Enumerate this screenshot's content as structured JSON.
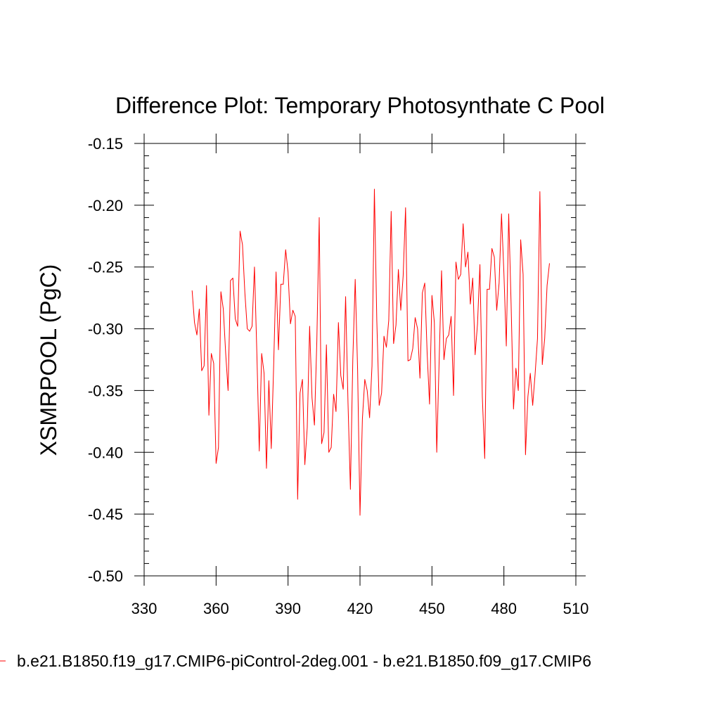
{
  "chart_data": {
    "type": "line",
    "title": "Difference Plot: Temporary Photosynthate C Pool",
    "xlabel": "",
    "ylabel": "XSMRPOOL  (PgC)",
    "xlim": [
      330,
      510
    ],
    "ylim": [
      -0.5,
      -0.15
    ],
    "xticks": [
      330,
      360,
      390,
      420,
      450,
      480,
      510
    ],
    "xtick_labels": [
      "330",
      "360",
      "390",
      "420",
      "450",
      "480",
      "510"
    ],
    "yticks": [
      -0.5,
      -0.45,
      -0.4,
      -0.35,
      -0.3,
      -0.25,
      -0.2,
      -0.15
    ],
    "ytick_labels": [
      "-0.50",
      "-0.45",
      "-0.40",
      "-0.35",
      "-0.30",
      "-0.25",
      "-0.20",
      "-0.15"
    ],
    "grid": false,
    "legend_position": "bottom-left",
    "series": [
      {
        "name": "b.e21.B1850.f19_g17.CMIP6-piControl-2deg.001 - b.e21.B1850.f09_g17.CMIP6",
        "color": "#ff0000",
        "x_start": 350,
        "x_step": 1,
        "values": [
          -0.269,
          -0.295,
          -0.305,
          -0.284,
          -0.334,
          -0.33,
          -0.265,
          -0.37,
          -0.32,
          -0.328,
          -0.409,
          -0.396,
          -0.27,
          -0.284,
          -0.32,
          -0.35,
          -0.261,
          -0.259,
          -0.292,
          -0.298,
          -0.221,
          -0.232,
          -0.271,
          -0.3,
          -0.302,
          -0.298,
          -0.25,
          -0.32,
          -0.399,
          -0.32,
          -0.336,
          -0.413,
          -0.342,
          -0.397,
          -0.33,
          -0.254,
          -0.317,
          -0.264,
          -0.264,
          -0.236,
          -0.254,
          -0.296,
          -0.285,
          -0.29,
          -0.438,
          -0.352,
          -0.341,
          -0.41,
          -0.38,
          -0.298,
          -0.356,
          -0.378,
          -0.31,
          -0.21,
          -0.393,
          -0.384,
          -0.313,
          -0.4,
          -0.396,
          -0.353,
          -0.367,
          -0.295,
          -0.338,
          -0.349,
          -0.274,
          -0.36,
          -0.43,
          -0.325,
          -0.26,
          -0.333,
          -0.451,
          -0.373,
          -0.341,
          -0.35,
          -0.372,
          -0.33,
          -0.187,
          -0.293,
          -0.362,
          -0.352,
          -0.306,
          -0.315,
          -0.293,
          -0.205,
          -0.312,
          -0.297,
          -0.252,
          -0.285,
          -0.257,
          -0.202,
          -0.326,
          -0.325,
          -0.316,
          -0.291,
          -0.3,
          -0.34,
          -0.271,
          -0.263,
          -0.32,
          -0.361,
          -0.273,
          -0.295,
          -0.4,
          -0.326,
          -0.253,
          -0.325,
          -0.308,
          -0.305,
          -0.29,
          -0.354,
          -0.246,
          -0.26,
          -0.256,
          -0.215,
          -0.25,
          -0.238,
          -0.28,
          -0.259,
          -0.321,
          -0.296,
          -0.248,
          -0.355,
          -0.405,
          -0.268,
          -0.268,
          -0.235,
          -0.242,
          -0.285,
          -0.263,
          -0.207,
          -0.255,
          -0.314,
          -0.207,
          -0.28,
          -0.365,
          -0.332,
          -0.35,
          -0.228,
          -0.256,
          -0.402,
          -0.355,
          -0.336,
          -0.362,
          -0.337,
          -0.308,
          -0.189,
          -0.329,
          -0.308,
          -0.265,
          -0.247
        ]
      }
    ]
  }
}
